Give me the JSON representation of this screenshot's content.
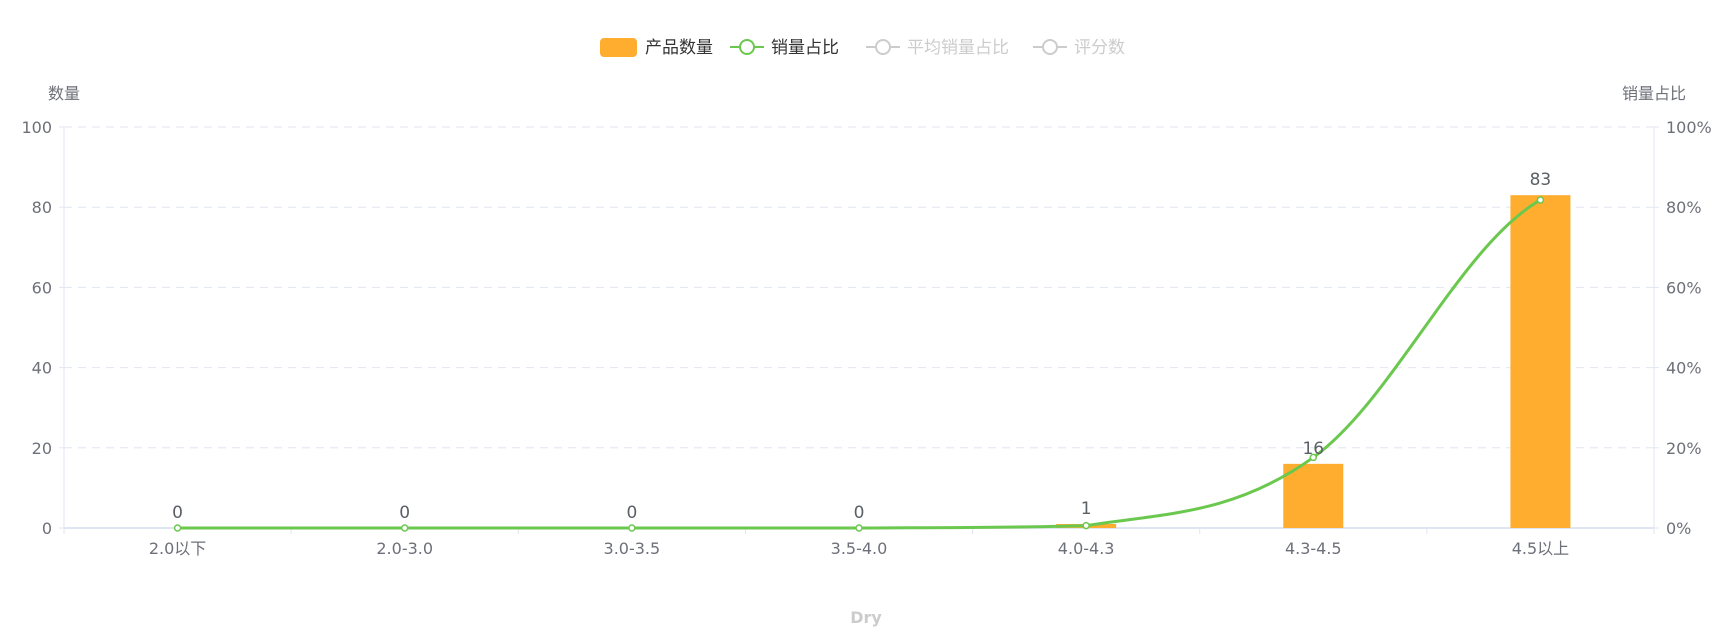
{
  "chart_data": {
    "type": "bar+line",
    "legend": {
      "placement": "top-center",
      "items": [
        {
          "name": "产品数量",
          "color": "#FFAD2E",
          "active": true,
          "symbol": "rect"
        },
        {
          "name": "销量占比",
          "color": "#6BC84E",
          "active": true,
          "symbol": "line-circle"
        },
        {
          "name": "平均销量占比",
          "color": "#CCCCCC",
          "active": false,
          "symbol": "line-circle"
        },
        {
          "name": "评分数",
          "color": "#CCCCCC",
          "active": false,
          "symbol": "line-circle"
        }
      ]
    },
    "xlabel": "Dry",
    "categories": [
      "2.0以下",
      "2.0-3.0",
      "3.0-3.5",
      "3.5-4.0",
      "4.0-4.3",
      "4.3-4.5",
      "4.5以上"
    ],
    "y_left": {
      "label": "数量",
      "ylim": [
        0,
        100
      ],
      "ticks": [
        "0",
        "20",
        "40",
        "60",
        "80",
        "100"
      ]
    },
    "y_right": {
      "label": "销量占比",
      "ylim": [
        0,
        100
      ],
      "ticks": [
        "0%",
        "20%",
        "40%",
        "60%",
        "80%",
        "100%"
      ]
    },
    "grid": true,
    "series": [
      {
        "name": "产品数量",
        "type": "bar",
        "axis": "left",
        "color": "#FFAD2E",
        "values": [
          0,
          0,
          0,
          0,
          1,
          16,
          83
        ],
        "labels": [
          "0",
          "0",
          "0",
          "0",
          "1",
          "16",
          "83"
        ]
      },
      {
        "name": "销量占比",
        "type": "line",
        "axis": "right",
        "smooth": true,
        "color": "#6BC84E",
        "values": [
          0,
          0,
          0,
          0,
          0.6,
          17.6,
          81.8
        ]
      }
    ]
  }
}
